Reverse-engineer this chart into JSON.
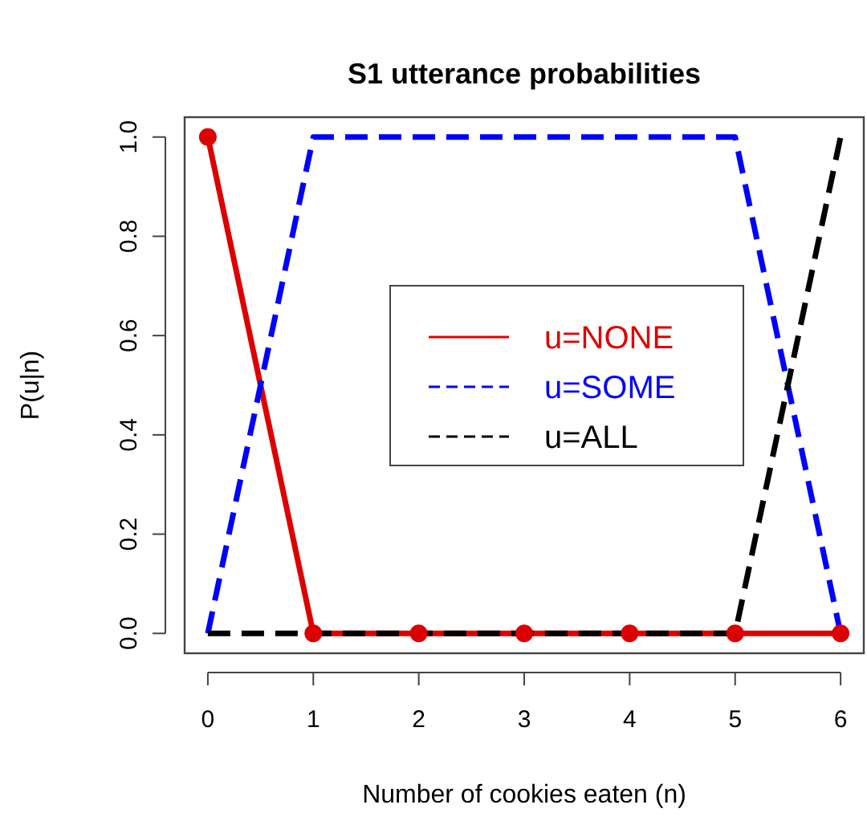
{
  "chart_data": {
    "type": "line",
    "title": "S1 utterance probabilities",
    "xlabel": "Number of cookies eaten (n)",
    "ylabel": "P(u|n)",
    "x": [
      0,
      1,
      2,
      3,
      4,
      5,
      6
    ],
    "xlim": [
      -0.22,
      6.22
    ],
    "ylim": [
      -0.04,
      1.04
    ],
    "xticks": [
      0,
      1,
      2,
      3,
      4,
      5,
      6
    ],
    "yticks": [
      {
        "value": 0,
        "label": "0.0"
      },
      {
        "value": 0.2,
        "label": "0.2"
      },
      {
        "value": 0.4,
        "label": "0.4"
      },
      {
        "value": 0.6,
        "label": "0.6"
      },
      {
        "value": 0.8,
        "label": "0.8"
      },
      {
        "value": 1,
        "label": "1.0"
      }
    ],
    "series": [
      {
        "name": "u=NONE",
        "color": "#dd0000",
        "values": [
          1,
          0,
          0,
          0,
          0,
          0,
          0
        ],
        "line_style": "solid",
        "marker": "circle"
      },
      {
        "name": "u=SOME",
        "color": "#0000ff",
        "values": [
          0,
          1,
          1,
          1,
          1,
          1,
          0
        ],
        "line_style": "dashed",
        "marker": "none"
      },
      {
        "name": "u=ALL",
        "color": "#000000",
        "values": [
          0,
          0,
          0,
          0,
          0,
          0,
          1
        ],
        "line_style": "dashed",
        "marker": "none"
      }
    ],
    "legend": "right",
    "grid": false
  }
}
